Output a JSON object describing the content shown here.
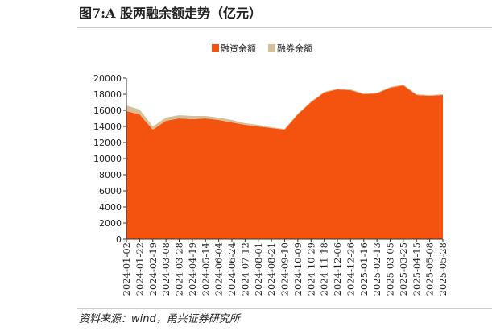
{
  "chart_data": {
    "type": "stacked-area",
    "title": "图7:A 股两融余额走势（亿元）",
    "source": "资料来源：wind，甬兴证券研究所",
    "categories": [
      "2024-01-02",
      "2024-01-22",
      "2024-02-19",
      "2024-03-08",
      "2024-03-28",
      "2024-04-19",
      "2024-05-14",
      "2024-06-04",
      "2024-06-24",
      "2024-07-12",
      "2024-08-01",
      "2024-08-21",
      "2024-09-10",
      "2024-10-09",
      "2024-10-29",
      "2024-11-18",
      "2024-12-06",
      "2024-12-26",
      "2025-01-16",
      "2025-02-13",
      "2025-03-05",
      "2025-03-25",
      "2025-04-15",
      "2025-05-08",
      "2025-05-28"
    ],
    "series": [
      {
        "name": "融资余额",
        "color": "#f4520f",
        "values": [
          15900,
          15500,
          13600,
          14700,
          15000,
          14900,
          15000,
          14800,
          14500,
          14200,
          14000,
          13800,
          13600,
          15500,
          17000,
          18200,
          18600,
          18500,
          18000,
          18100,
          18800,
          19100,
          17900,
          17800,
          17900
        ]
      },
      {
        "name": "融券余额",
        "color": "#d6c09a",
        "values": [
          700,
          600,
          400,
          400,
          400,
          400,
          300,
          300,
          300,
          200,
          200,
          100,
          100,
          100,
          100,
          100,
          100,
          100,
          100,
          100,
          100,
          100,
          100,
          100,
          100
        ]
      }
    ],
    "ylim": [
      0,
      20000
    ],
    "yticks": [
      0,
      2000,
      4000,
      6000,
      8000,
      10000,
      12000,
      14000,
      16000,
      18000,
      20000
    ]
  }
}
